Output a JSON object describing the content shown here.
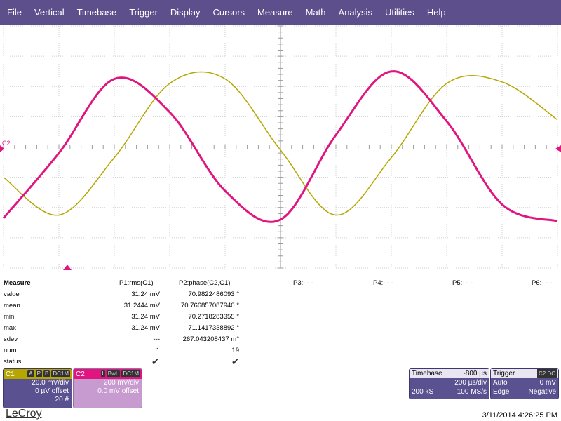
{
  "menu": [
    "File",
    "Vertical",
    "Timebase",
    "Trigger",
    "Display",
    "Cursors",
    "Measure",
    "Math",
    "Analysis",
    "Utilities",
    "Help"
  ],
  "marker_label": "C2",
  "measure": {
    "title": "Measure",
    "row_labels": [
      "value",
      "mean",
      "min",
      "max",
      "sdev",
      "num",
      "status"
    ],
    "p1": {
      "header": "P1:rms(C1)",
      "values": [
        "31.24 mV",
        "31.2444 mV",
        "31.24 mV",
        "31.24 mV",
        "---",
        "1"
      ]
    },
    "p2": {
      "header": "P2:phase(C2,C1)",
      "values": [
        "70.9822486093 °",
        "70.766857087940 °",
        "70.2718283355 °",
        "71.1417338892 °",
        "267.043208437 m°",
        "19"
      ]
    },
    "p3": "P3:- - -",
    "p4": "P4:- - -",
    "p5": "P5:- - -",
    "p6": "P6:- - -"
  },
  "c1": {
    "name": "C1",
    "tags": [
      "A",
      "P",
      "B",
      "DC1M"
    ],
    "vdiv": "20.0 mV/div",
    "offset": "0 µV offset",
    "count": "20 #"
  },
  "c2": {
    "name": "C2",
    "tags": [
      "I",
      "BwL",
      "DC1M"
    ],
    "vdiv": "200 mV/div",
    "offset": "0.0 mV offset"
  },
  "timebase": {
    "label": "Timebase",
    "delay": "-800 µs",
    "tdiv": "200 µs/div",
    "samples": "200 kS",
    "rate": "100 MS/s"
  },
  "trigger": {
    "label": "Trigger",
    "badge": "C2 DC",
    "mode": "Auto",
    "level": "0 mV",
    "type": "Edge",
    "slope": "Negative"
  },
  "brand": "LeCroy",
  "datetime": "3/11/2014 4:26:25 PM",
  "colors": {
    "c1": "#b5a700",
    "c2": "#e0157f",
    "menu": "#5c4f8b"
  },
  "chart_data": {
    "type": "line",
    "series": [
      {
        "x": [
          0,
          1,
          2,
          3,
          4,
          5,
          6,
          7,
          8,
          9,
          10
        ],
        "y": [
          -1.0,
          -2.25,
          -0.35,
          2.1,
          2.25,
          -0.1,
          -2.25,
          -0.35,
          2.1,
          2.15,
          0.9
        ]
      },
      {
        "x": [
          0,
          1,
          2,
          3,
          4,
          5,
          6,
          7,
          8,
          9,
          10
        ],
        "y": [
          -2.35,
          -0.2,
          2.25,
          1.15,
          -1.45,
          -2.4,
          0.4,
          2.5,
          0.85,
          -1.9,
          -2.45
        ]
      }
    ]
  }
}
